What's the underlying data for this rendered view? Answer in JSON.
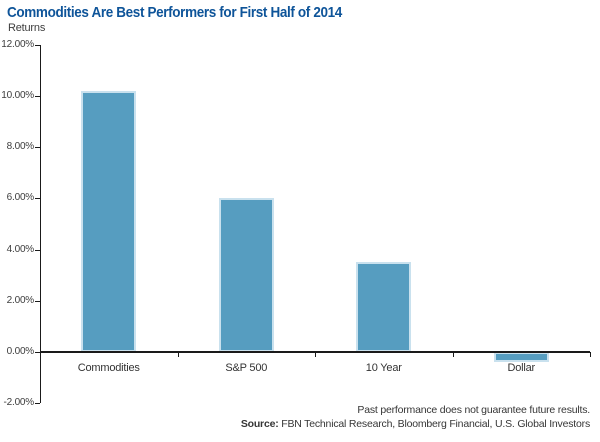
{
  "header": {
    "title": "Commodities Are Best Performers for First Half of 2014",
    "subtitle": "Returns"
  },
  "footer": {
    "disclaimer": "Past performance does not guarantee future results.",
    "source_label": "Source:",
    "source_rest": " FBN Technical Research, Bloomberg Financial, U.S. Global Investors"
  },
  "colors": {
    "title": "#0E5499",
    "bar_fill": "#569DC0",
    "bar_border": "#C9E1EE",
    "axis": "#1A1A1A",
    "text": "#363636"
  },
  "chart_data": {
    "type": "bar",
    "title": "Commodities Are Best Performers for First Half of 2014",
    "xlabel": "",
    "ylabel": "Returns",
    "categories": [
      "Commodities",
      "S&P 500",
      "10 Year",
      "Dollar"
    ],
    "values": [
      10.2,
      6.0,
      3.5,
      -0.4
    ],
    "ylim": [
      -2,
      12
    ],
    "ytick_values": [
      12,
      10,
      8,
      6,
      4,
      2,
      0,
      -2
    ],
    "ytick_labels": [
      "12.00%",
      "10.00%",
      "8.00%",
      "6.00%",
      "4.00%",
      "2.00%",
      "0.00%",
      "-2.00%"
    ],
    "grid": false,
    "legend": null
  }
}
